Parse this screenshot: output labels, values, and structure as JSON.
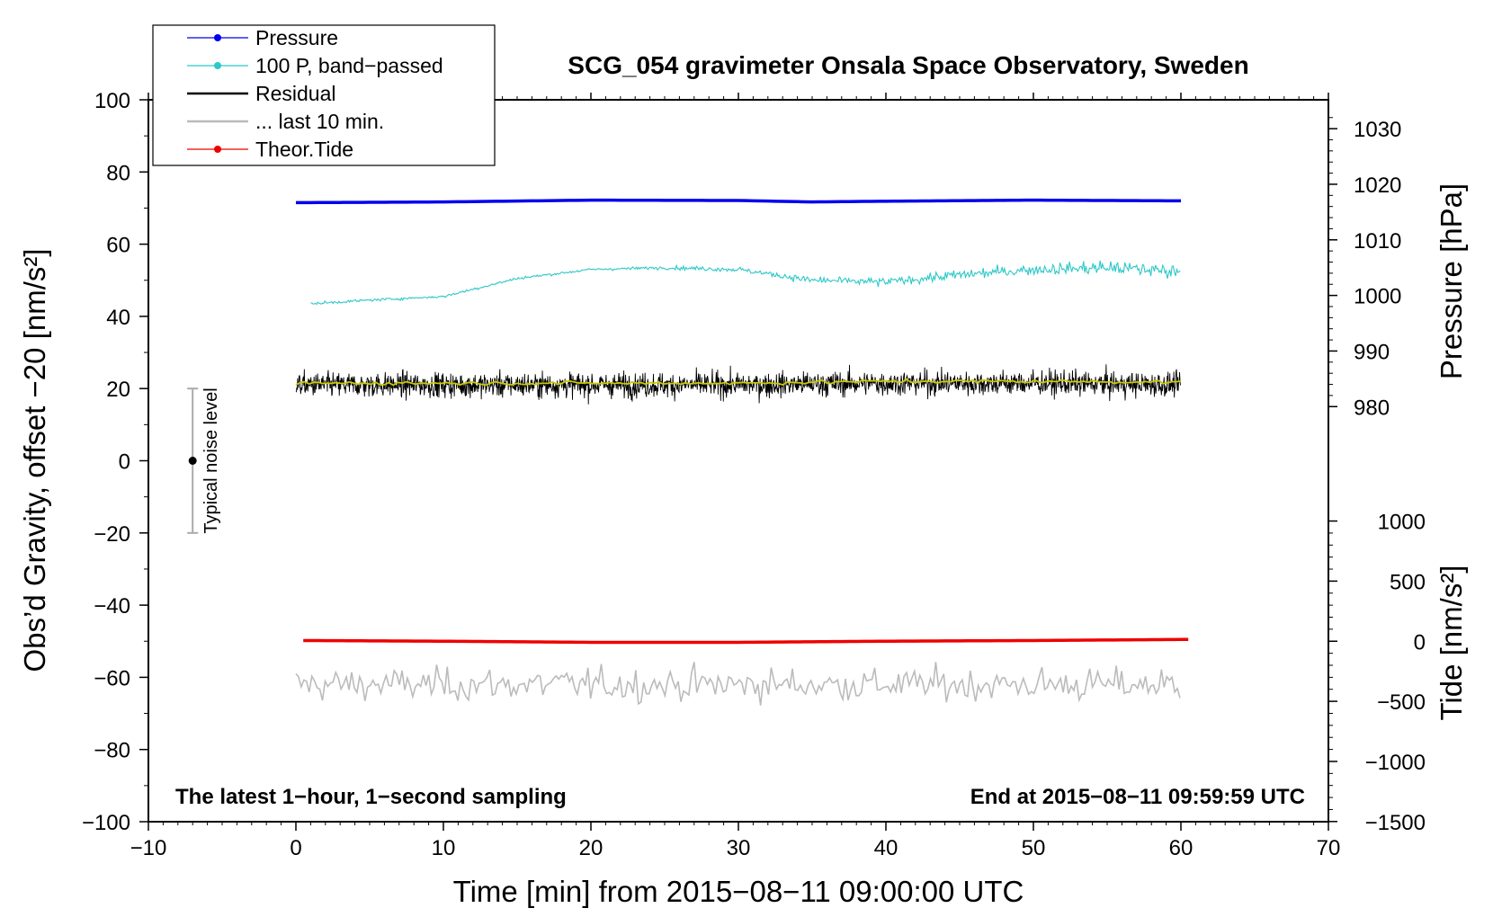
{
  "chart_data": {
    "type": "line",
    "title": "SCG_054 gravimeter Onsala Space Observatory, Sweden",
    "xlabel": "Time [min] from 2015−08−11 09:00:00 UTC",
    "ylabel_left": "Obs’d Gravity, offset −20 [nm/s²]",
    "ylabel_right_pressure": "Pressure [hPa]",
    "ylabel_right_tide": "Tide [nm/s²]",
    "xlim": [
      -10,
      70
    ],
    "ylim": [
      -100,
      100
    ],
    "x_ticks": [
      -10,
      0,
      10,
      20,
      30,
      40,
      50,
      60,
      70
    ],
    "x_tick_labels": [
      "−10",
      "0",
      "10",
      "20",
      "30",
      "40",
      "50",
      "60",
      "70"
    ],
    "y_ticks": [
      -100,
      -80,
      -60,
      -40,
      -20,
      0,
      20,
      40,
      60,
      80,
      100
    ],
    "y_tick_labels": [
      "−100",
      "−80",
      "−60",
      "−40",
      "−20",
      "0",
      "20",
      "40",
      "60",
      "80",
      "100"
    ],
    "pressure_axis": {
      "ticks": [
        980,
        990,
        1000,
        1010,
        1020,
        1030
      ],
      "tick_labels": [
        "980",
        "990",
        "1000",
        "1010",
        "1020",
        "1030"
      ],
      "g_at_980": 15.0,
      "g_per_hpa": 1.54
    },
    "tide_axis": {
      "ticks": [
        -1500,
        -1000,
        -500,
        0,
        500,
        1000
      ],
      "tick_labels": [
        "−1500",
        "−1000",
        "−500",
        "0",
        "500",
        "1000"
      ],
      "g_at_0": -50.0,
      "g_per_unit": 0.0333
    },
    "annotations": {
      "left_bottom": "The latest 1−hour, 1−second sampling",
      "right_bottom": "End at 2015−08−11 09:59:59 UTC",
      "noise_label": "Typical noise level"
    },
    "noise_bar": {
      "x": -7,
      "center": 0,
      "low": -20,
      "high": 20
    },
    "legend": {
      "position": "top-left",
      "entries": [
        {
          "label": "Pressure",
          "color": "#0000ee",
          "marker": true
        },
        {
          "label": "100 P, band−passed",
          "color": "#2ec8c8",
          "marker": true
        },
        {
          "label": "Residual",
          "color": "#000000",
          "marker": false
        },
        {
          "label": "... last 10 min.",
          "color": "#bbbbbb",
          "marker": false
        },
        {
          "label": "Theor.Tide",
          "color": "#ee0000",
          "marker": true
        }
      ]
    },
    "series": [
      {
        "name": "Pressure",
        "color": "#0000ee",
        "x": [
          0,
          10,
          20,
          30,
          35,
          40,
          50,
          60
        ],
        "y": [
          71.5,
          71.7,
          72.2,
          72.1,
          71.7,
          71.9,
          72.2,
          72.0
        ]
      },
      {
        "name": "100 P, band−passed",
        "color": "#2ec8c8",
        "x": [
          1,
          5,
          10,
          15,
          20,
          25,
          30,
          35,
          40,
          45,
          50,
          55,
          60
        ],
        "y": [
          43.5,
          44.5,
          45.5,
          50.5,
          53.0,
          53.5,
          53.0,
          50.0,
          49.5,
          51.5,
          53.0,
          53.5,
          52.5
        ]
      },
      {
        "name": "Residual",
        "color": "#000000",
        "x": [
          0,
          10,
          20,
          30,
          40,
          50,
          60
        ],
        "y": [
          21.0,
          21.0,
          21.0,
          21.0,
          21.5,
          21.5,
          21.0
        ]
      },
      {
        "name": "Residual smoothed",
        "color": "#c8c800",
        "x": [
          0,
          10,
          20,
          30,
          40,
          50,
          60
        ],
        "y": [
          21.5,
          21.5,
          21.5,
          21.5,
          22.0,
          22.0,
          21.8
        ]
      },
      {
        "name": "... last 10 min.",
        "color": "#bbbbbb",
        "x": [
          0,
          10,
          20,
          30,
          40,
          50,
          60
        ],
        "y": [
          -62,
          -62,
          -62,
          -62,
          -62,
          -62,
          -62
        ]
      },
      {
        "name": "Theor.Tide",
        "color": "#ee0000",
        "x": [
          0.5,
          10,
          20,
          30,
          40,
          50,
          60.5
        ],
        "y": [
          -49.8,
          -50.0,
          -50.3,
          -50.3,
          -50.0,
          -49.8,
          -49.5
        ]
      }
    ]
  }
}
